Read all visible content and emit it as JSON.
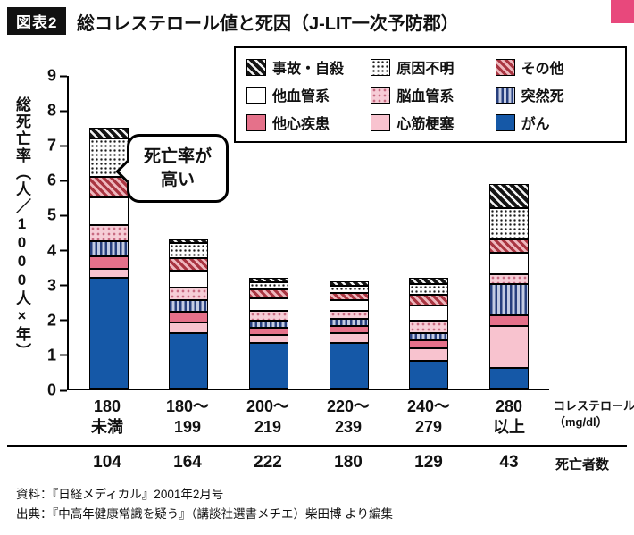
{
  "header": {
    "fig_label": "図表2",
    "title": "総コレステロール値と死因（J-LIT一次予防郡）"
  },
  "colors": {
    "accent_pink": "#e8487c",
    "bar_blue": "#1558a7",
    "pink_light": "#f8c3cf",
    "rose": "#e5718a",
    "navy_stripe": "#273f7d",
    "red_hatch": "#a93541"
  },
  "callout": {
    "lines": [
      "死亡率が",
      "高い"
    ]
  },
  "chart_data": {
    "type": "bar",
    "stacked": true,
    "title": "総コレステロール値と死因（J-LIT一次予防郡）",
    "xlabel": "コレステロール（mg/dl）",
    "ylabel": "総死亡率（人／1000人×年）",
    "ylim": [
      0,
      9
    ],
    "yticks": [
      0,
      1,
      2,
      3,
      4,
      5,
      6,
      7,
      8,
      9
    ],
    "grid": false,
    "legend_position": "top-right",
    "categories": [
      "180未満",
      "180〜199",
      "200〜219",
      "220〜239",
      "240〜279",
      "280以上"
    ],
    "categories_lines": [
      [
        "180",
        "未満"
      ],
      [
        "180〜",
        "199"
      ],
      [
        "200〜",
        "219"
      ],
      [
        "220〜",
        "239"
      ],
      [
        "240〜",
        "279"
      ],
      [
        "280",
        "以上"
      ]
    ],
    "series": [
      {
        "name": "がん",
        "pattern": "gan",
        "values": [
          3.2,
          1.6,
          1.3,
          1.3,
          0.8,
          0.6
        ]
      },
      {
        "name": "心筋梗塞",
        "pattern": "shinkin",
        "values": [
          0.25,
          0.3,
          0.25,
          0.3,
          0.35,
          1.2
        ]
      },
      {
        "name": "他心疾患",
        "pattern": "tashin",
        "values": [
          0.35,
          0.3,
          0.2,
          0.2,
          0.25,
          0.3
        ]
      },
      {
        "name": "突然死",
        "pattern": "totsuzen",
        "values": [
          0.45,
          0.35,
          0.2,
          0.2,
          0.2,
          0.9
        ]
      },
      {
        "name": "脳血管系",
        "pattern": "nou",
        "values": [
          0.45,
          0.35,
          0.3,
          0.25,
          0.35,
          0.3
        ]
      },
      {
        "name": "他血管系",
        "pattern": "taketsu",
        "values": [
          0.8,
          0.5,
          0.35,
          0.3,
          0.45,
          0.6
        ]
      },
      {
        "name": "その他",
        "pattern": "sonota",
        "values": [
          0.6,
          0.35,
          0.25,
          0.2,
          0.3,
          0.4
        ]
      },
      {
        "name": "原因不明",
        "pattern": "genin",
        "values": [
          1.1,
          0.45,
          0.2,
          0.2,
          0.3,
          0.9
        ]
      },
      {
        "name": "事故・自殺",
        "pattern": "jiko",
        "values": [
          0.3,
          0.1,
          0.15,
          0.15,
          0.2,
          0.7
        ]
      }
    ],
    "totals": [
      7.5,
      4.3,
      3.2,
      3.1,
      3.2,
      5.9
    ],
    "legend": [
      {
        "label": "事故・自殺",
        "pattern": "jiko"
      },
      {
        "label": "原因不明",
        "pattern": "genin"
      },
      {
        "label": "その他",
        "pattern": "sonota"
      },
      {
        "label": "他血管系",
        "pattern": "taketsu"
      },
      {
        "label": "脳血管系",
        "pattern": "nou"
      },
      {
        "label": "突然死",
        "pattern": "totsuzen"
      },
      {
        "label": "他心疾患",
        "pattern": "tashin"
      },
      {
        "label": "心筋梗塞",
        "pattern": "shinkin"
      },
      {
        "label": "がん",
        "pattern": "gan"
      }
    ],
    "x_axis_unit_lines": [
      "コレステロール",
      "（mg/dl）"
    ],
    "death_counts": [
      "104",
      "164",
      "222",
      "180",
      "129",
      "43"
    ],
    "counts_label": "死亡者数"
  },
  "footer": {
    "line1": "資料：『日経メディカル』2001年2月号",
    "line2": "出典：『中高年健康常識を疑う』（講談社選書メチエ）柴田博 より編集"
  }
}
